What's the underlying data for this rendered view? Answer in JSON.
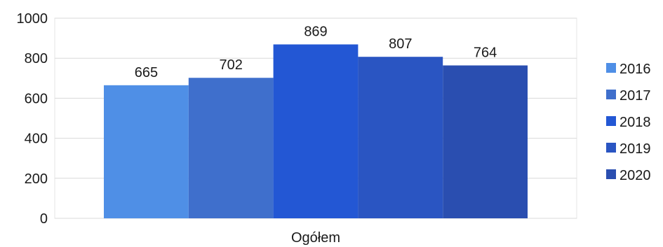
{
  "chart_data": {
    "type": "bar",
    "categories": [
      "Ogółem"
    ],
    "series": [
      {
        "name": "2016",
        "values": [
          665
        ],
        "color": "#4f8fe6"
      },
      {
        "name": "2017",
        "values": [
          702
        ],
        "color": "#3f6fcc"
      },
      {
        "name": "2018",
        "values": [
          869
        ],
        "color": "#2357d4"
      },
      {
        "name": "2019",
        "values": [
          807
        ],
        "color": "#2a55c2"
      },
      {
        "name": "2020",
        "values": [
          764
        ],
        "color": "#2a4eb0"
      }
    ],
    "title": "",
    "xlabel": "",
    "ylabel": "",
    "ylim": [
      0,
      1000
    ],
    "yticks": [
      0,
      200,
      400,
      600,
      800,
      1000
    ],
    "data_labels": true,
    "grid": true,
    "legend": "right"
  }
}
